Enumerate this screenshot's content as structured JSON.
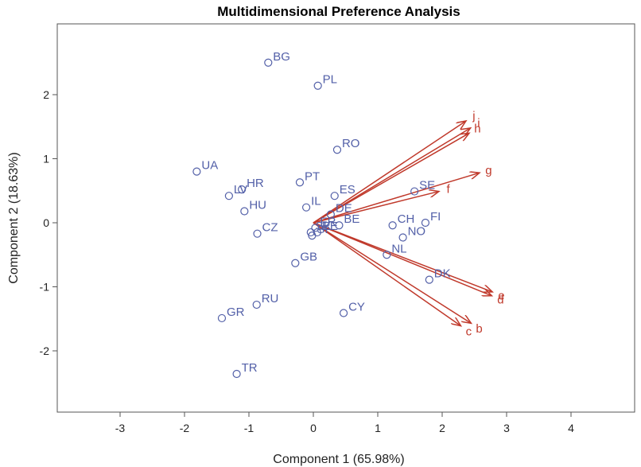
{
  "chart_data": {
    "type": "scatter",
    "title": "Multidimensional Preference Analysis",
    "xlabel": "Component 1 (65.98%)",
    "ylabel": "Component 2 (18.63%)",
    "xlim": [
      -3.0,
      5.0
    ],
    "ylim": [
      -3.0,
      3.2
    ],
    "xticks": [
      -3,
      -2,
      -1,
      0,
      1,
      2,
      3,
      4
    ],
    "yticks": [
      -2,
      -1,
      0,
      1,
      2
    ],
    "grid": false,
    "colors": {
      "points": "#5360a8",
      "vectors": "#c0392b"
    },
    "points": [
      {
        "label": "BG",
        "x": -0.7,
        "y": 2.5
      },
      {
        "label": "PL",
        "x": 0.07,
        "y": 2.14
      },
      {
        "label": "RO",
        "x": 0.37,
        "y": 1.14
      },
      {
        "label": "UA",
        "x": -1.81,
        "y": 0.8
      },
      {
        "label": "PT",
        "x": -0.21,
        "y": 0.63
      },
      {
        "label": "HR",
        "x": -1.11,
        "y": 0.52
      },
      {
        "label": "ES",
        "x": 0.33,
        "y": 0.42
      },
      {
        "label": "SE",
        "x": 1.57,
        "y": 0.49
      },
      {
        "label": "LV",
        "x": -1.31,
        "y": 0.42
      },
      {
        "label": "IL",
        "x": -0.11,
        "y": 0.24
      },
      {
        "label": "HU",
        "x": -1.07,
        "y": 0.18
      },
      {
        "label": "DE",
        "x": 0.27,
        "y": 0.13
      },
      {
        "label": "FR",
        "x": 0.03,
        "y": -0.08
      },
      {
        "label": "CH",
        "x": 1.23,
        "y": -0.04
      },
      {
        "label": "FI",
        "x": 1.74,
        "y": 0.0
      },
      {
        "label": "BE",
        "x": 0.4,
        "y": -0.04
      },
      {
        "label": "CZ",
        "x": -0.87,
        "y": -0.17
      },
      {
        "label": "SK",
        "x": -0.04,
        "y": -0.15
      },
      {
        "label": "SI",
        "x": -0.02,
        "y": -0.2
      },
      {
        "label": "EE",
        "x": 0.06,
        "y": -0.15
      },
      {
        "label": "NO",
        "x": 1.39,
        "y": -0.23
      },
      {
        "label": "GB",
        "x": -0.28,
        "y": -0.63
      },
      {
        "label": "NL",
        "x": 1.14,
        "y": -0.5
      },
      {
        "label": "DK",
        "x": 1.8,
        "y": -0.89
      },
      {
        "label": "RU",
        "x": -0.88,
        "y": -1.28
      },
      {
        "label": "CY",
        "x": 0.47,
        "y": -1.41
      },
      {
        "label": "GR",
        "x": -1.42,
        "y": -1.49
      },
      {
        "label": "TR",
        "x": -1.19,
        "y": -2.36
      }
    ],
    "vectors": [
      {
        "label": "j",
        "x": 2.37,
        "y": 1.59
      },
      {
        "label": "i",
        "x": 2.44,
        "y": 1.48
      },
      {
        "label": "h",
        "x": 2.42,
        "y": 1.4
      },
      {
        "label": "g",
        "x": 2.58,
        "y": 0.78
      },
      {
        "label": "f",
        "x": 1.95,
        "y": 0.49
      },
      {
        "label": "e",
        "x": 2.78,
        "y": -1.08
      },
      {
        "label": "d",
        "x": 2.77,
        "y": -1.14
      },
      {
        "label": "b",
        "x": 2.45,
        "y": -1.57
      },
      {
        "label": "c",
        "x": 2.29,
        "y": -1.61
      }
    ]
  }
}
